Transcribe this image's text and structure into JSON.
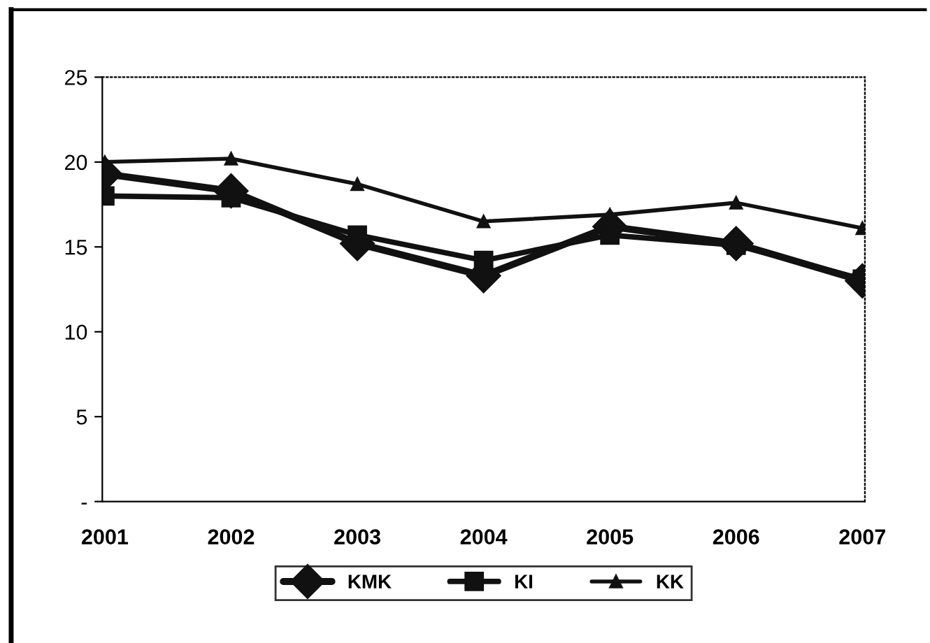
{
  "chart_data": {
    "type": "line",
    "categories": [
      "2001",
      "2002",
      "2003",
      "2004",
      "2005",
      "2006",
      "2007"
    ],
    "series": [
      {
        "name": "KMK",
        "color": "#111111",
        "marker": "diamond",
        "values": [
          19.3,
          18.3,
          15.2,
          13.3,
          16.2,
          15.2,
          13.0
        ]
      },
      {
        "name": "KI",
        "color": "#111111",
        "marker": "square",
        "values": [
          18.0,
          17.9,
          15.7,
          14.2,
          15.7,
          15.1,
          13.1
        ]
      },
      {
        "name": "KK",
        "color": "#111111",
        "marker": "triangle",
        "values": [
          20.0,
          20.2,
          18.7,
          16.5,
          16.9,
          17.6,
          16.1
        ]
      }
    ],
    "ylim": [
      0,
      25
    ],
    "yticks": [
      {
        "value": 0,
        "label": "-"
      },
      5,
      10,
      15,
      20,
      25
    ],
    "grid": false,
    "legend": "bottom",
    "line_style": "solid"
  }
}
